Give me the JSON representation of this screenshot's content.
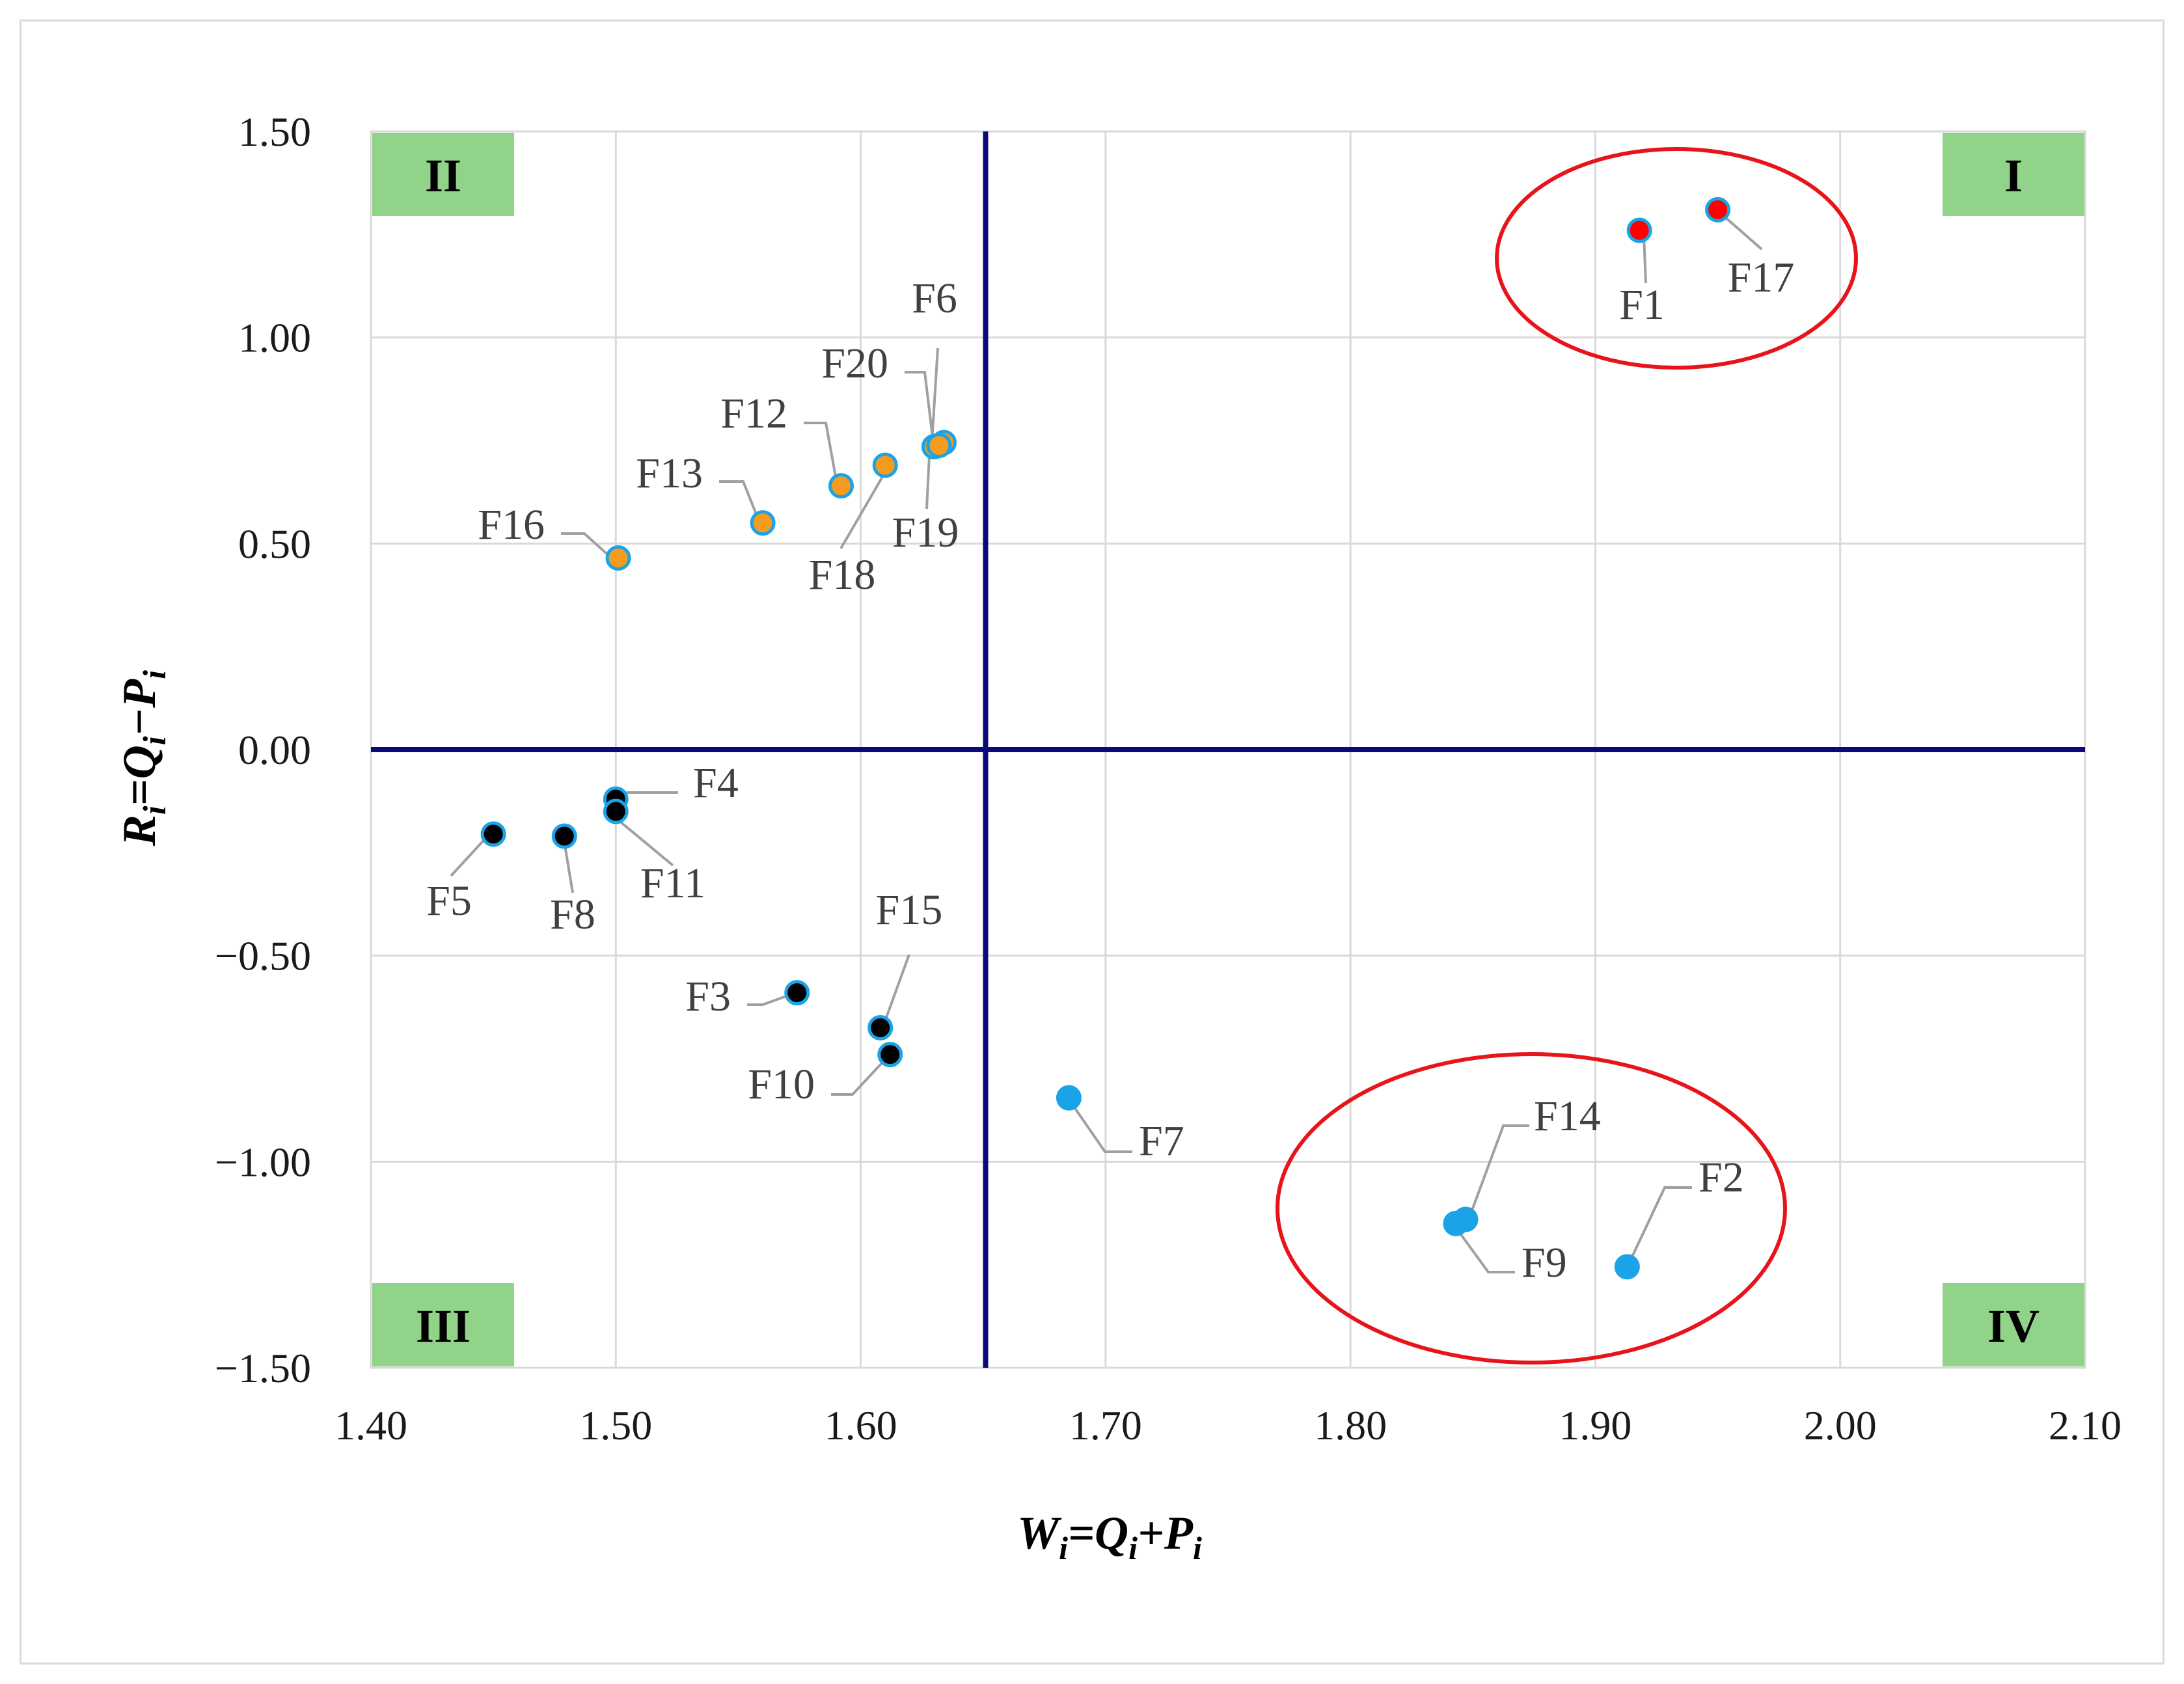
{
  "chart_data": {
    "type": "scatter",
    "title": "",
    "xlabel": {
      "main": "W",
      "sub1": "i",
      "mid": "=Q",
      "sub2": "i",
      "mid2": "+P",
      "sub3": "i"
    },
    "ylabel": {
      "main": "R",
      "sub1": "i",
      "mid": "=Q",
      "sub2": "i",
      "mid2": "−P",
      "sub3": "i"
    },
    "xlim": [
      1.4,
      2.1
    ],
    "ylim": [
      -1.5,
      1.5
    ],
    "x_ticks": [
      "1.40",
      "1.50",
      "1.60",
      "1.70",
      "1.80",
      "1.90",
      "2.00",
      "2.10"
    ],
    "y_ticks": [
      "1.50",
      "1.00",
      "0.50",
      "0.00",
      "−0.50",
      "−1.00",
      "−1.50"
    ],
    "grid": true,
    "divider_x": 1.651,
    "divider_y": 0.0,
    "quadrants": [
      {
        "label": "I",
        "position": "top-right"
      },
      {
        "label": "II",
        "position": "top-left"
      },
      {
        "label": "III",
        "position": "bottom-left"
      },
      {
        "label": "IV",
        "position": "bottom-right"
      }
    ],
    "series": [
      {
        "name": "Quadrant I",
        "color": "#ff0000",
        "points": [
          {
            "label": "F1",
            "x": 1.918,
            "y": 1.26
          },
          {
            "label": "F17",
            "x": 1.95,
            "y": 1.31
          }
        ]
      },
      {
        "name": "Quadrant II",
        "color": "#f39c1f",
        "points": [
          {
            "label": "F6",
            "x": 1.634,
            "y": 0.745
          },
          {
            "label": "F20",
            "x": 1.63,
            "y": 0.735
          },
          {
            "label": "F12",
            "x": 1.592,
            "y": 0.64
          },
          {
            "label": "F13",
            "x": 1.56,
            "y": 0.55
          },
          {
            "label": "F18",
            "x": 1.61,
            "y": 0.69
          },
          {
            "label": "F19",
            "x": 1.632,
            "y": 0.738
          },
          {
            "label": "F16",
            "x": 1.501,
            "y": 0.465
          }
        ]
      },
      {
        "name": "Quadrant III",
        "color": "#000000",
        "points": [
          {
            "label": "F4",
            "x": 1.5,
            "y": -0.12
          },
          {
            "label": "F11",
            "x": 1.5,
            "y": -0.15
          },
          {
            "label": "F5",
            "x": 1.45,
            "y": -0.205
          },
          {
            "label": "F8",
            "x": 1.479,
            "y": -0.21
          },
          {
            "label": "F3",
            "x": 1.574,
            "y": -0.59
          },
          {
            "label": "F15",
            "x": 1.608,
            "y": -0.675
          },
          {
            "label": "F10",
            "x": 1.612,
            "y": -0.74
          }
        ]
      },
      {
        "name": "Quadrant IV",
        "color": "#1aa3e6",
        "points": [
          {
            "label": "F7",
            "x": 1.685,
            "y": -0.845
          },
          {
            "label": "F14",
            "x": 1.847,
            "y": -1.14
          },
          {
            "label": "F9",
            "x": 1.843,
            "y": -1.15
          },
          {
            "label": "F2",
            "x": 1.913,
            "y": -1.255
          }
        ]
      }
    ]
  },
  "colors": {
    "grid": "#d9d9d9",
    "axis_line": "#0a0a7a",
    "quadrant_box": "#92d38a",
    "highlight_ellipse": "#e8141c",
    "leader": "#a0a0a0",
    "marker_edge": "#1aa3e6"
  }
}
